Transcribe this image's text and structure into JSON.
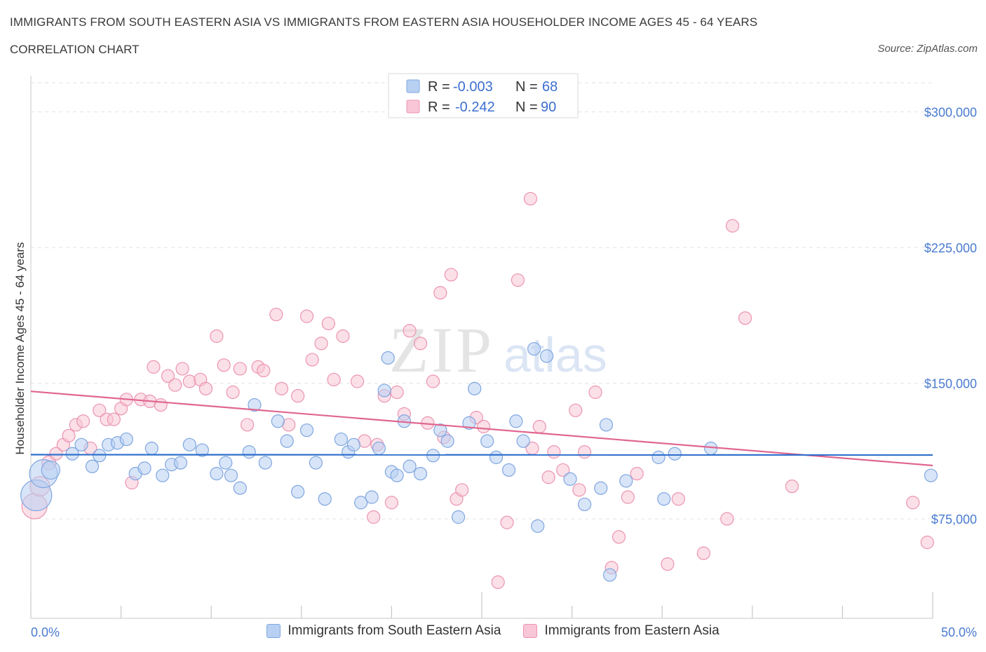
{
  "title": "IMMIGRANTS FROM SOUTH EASTERN ASIA VS IMMIGRANTS FROM EASTERN ASIA HOUSEHOLDER INCOME AGES 45 - 64 YEARS",
  "subtitle": "CORRELATION CHART",
  "source": "Source: ZipAtlas.com",
  "watermark": {
    "zip": "ZIP",
    "atlas": "atlas"
  },
  "colors": {
    "blue_fill": "#b8d0f2",
    "blue_stroke": "#7fa6e0",
    "blue_line": "#2f6fcc",
    "pink_fill": "#f8c6d6",
    "pink_stroke": "#ec94b1",
    "pink_line": "#e06690",
    "axis_label": "#4a7bd0",
    "grid": "#e2e2e2"
  },
  "legend_box": {
    "rows": [
      {
        "r_label": "R =",
        "r_value": "-0.003",
        "n_label": "N =",
        "n_value": "68",
        "series": "blue"
      },
      {
        "r_label": "R =",
        "r_value": "-0.242",
        "n_label": "N =",
        "n_value": "90",
        "series": "pink"
      }
    ]
  },
  "bottom_legend": [
    {
      "label": "Immigrants from South Eastern Asia",
      "series": "blue"
    },
    {
      "label": "Immigrants from Eastern Asia",
      "series": "pink"
    }
  ],
  "chart_data": {
    "type": "scatter",
    "title": "IMMIGRANTS FROM SOUTH EASTERN ASIA VS IMMIGRANTS FROM EASTERN ASIA HOUSEHOLDER INCOME AGES 45 - 64 YEARS",
    "xlabel": "",
    "ylabel": "Householder Income Ages 45 - 64 years",
    "xlim": [
      0,
      50
    ],
    "ylim": [
      20000,
      320000
    ],
    "x_tick_labels": [
      "0.0%",
      "50.0%"
    ],
    "y_ticks": [
      75000,
      150000,
      225000,
      300000
    ],
    "y_tick_labels": [
      "$75,000",
      "$150,000",
      "$225,000",
      "$300,000"
    ],
    "grid": true,
    "series": [
      {
        "name": "Immigrants from South Eastern Asia",
        "color": "blue",
        "trend": {
          "x": [
            0,
            50
          ],
          "y": [
            110500,
            110300
          ]
        },
        "points": [
          [
            0.3,
            88000,
            22
          ],
          [
            0.7,
            100000,
            20
          ],
          [
            1.1,
            102000,
            13
          ],
          [
            2.3,
            111000,
            9
          ],
          [
            2.8,
            116000,
            9
          ],
          [
            3.4,
            104000,
            9
          ],
          [
            3.8,
            110000,
            9
          ],
          [
            4.3,
            116000,
            9
          ],
          [
            4.8,
            117000,
            9
          ],
          [
            5.3,
            119000,
            9
          ],
          [
            5.8,
            100000,
            9
          ],
          [
            6.3,
            103000,
            9
          ],
          [
            6.7,
            114000,
            9
          ],
          [
            7.3,
            99000,
            9
          ],
          [
            7.8,
            105000,
            9
          ],
          [
            8.3,
            106000,
            9
          ],
          [
            8.8,
            116000,
            9
          ],
          [
            9.5,
            113000,
            9
          ],
          [
            10.3,
            100000,
            9
          ],
          [
            10.8,
            106000,
            9
          ],
          [
            11.1,
            99000,
            9
          ],
          [
            11.6,
            92000,
            9
          ],
          [
            12.1,
            112000,
            9
          ],
          [
            12.4,
            138000,
            9
          ],
          [
            13.0,
            106000,
            9
          ],
          [
            13.7,
            129000,
            9
          ],
          [
            14.2,
            118000,
            9
          ],
          [
            14.8,
            90000,
            9
          ],
          [
            15.3,
            124000,
            9
          ],
          [
            15.8,
            106000,
            9
          ],
          [
            16.3,
            86000,
            9
          ],
          [
            17.2,
            119000,
            9
          ],
          [
            17.6,
            112000,
            9
          ],
          [
            17.9,
            116000,
            9
          ],
          [
            18.3,
            84000,
            9
          ],
          [
            18.9,
            87000,
            9
          ],
          [
            19.3,
            114000,
            9
          ],
          [
            19.6,
            146000,
            9
          ],
          [
            19.8,
            164000,
            9
          ],
          [
            20.0,
            101000,
            9
          ],
          [
            20.3,
            99000,
            9
          ],
          [
            20.7,
            129000,
            9
          ],
          [
            21.0,
            104000,
            9
          ],
          [
            21.6,
            100000,
            9
          ],
          [
            22.3,
            110000,
            9
          ],
          [
            22.7,
            124000,
            9
          ],
          [
            23.1,
            118000,
            9
          ],
          [
            23.7,
            76000,
            9
          ],
          [
            24.3,
            128000,
            9
          ],
          [
            24.6,
            147000,
            9
          ],
          [
            25.3,
            118000,
            9
          ],
          [
            25.8,
            109000,
            9
          ],
          [
            26.5,
            102000,
            9
          ],
          [
            26.9,
            129000,
            9
          ],
          [
            27.3,
            118000,
            9
          ],
          [
            27.9,
            169000,
            9
          ],
          [
            28.1,
            71000,
            9
          ],
          [
            28.6,
            165000,
            9
          ],
          [
            29.9,
            97000,
            9
          ],
          [
            30.7,
            83000,
            9
          ],
          [
            31.6,
            92000,
            9
          ],
          [
            31.9,
            127000,
            9
          ],
          [
            32.1,
            44000,
            9
          ],
          [
            33.0,
            96000,
            9
          ],
          [
            34.8,
            109000,
            9
          ],
          [
            35.1,
            86000,
            9
          ],
          [
            35.7,
            111000,
            9
          ],
          [
            37.7,
            114000,
            9
          ],
          [
            49.9,
            99000,
            9
          ]
        ]
      },
      {
        "name": "Immigrants from Eastern Asia",
        "color": "pink",
        "trend": {
          "x": [
            0,
            50
          ],
          "y": [
            145500,
            104500
          ]
        },
        "points": [
          [
            0.2,
            82000,
            18
          ],
          [
            0.5,
            93000,
            14
          ],
          [
            1.0,
            106000,
            10
          ],
          [
            1.4,
            111000,
            9
          ],
          [
            1.8,
            116000,
            9
          ],
          [
            2.1,
            121000,
            9
          ],
          [
            2.5,
            127000,
            9
          ],
          [
            2.9,
            129000,
            9
          ],
          [
            3.3,
            114000,
            9
          ],
          [
            3.8,
            135000,
            9
          ],
          [
            4.2,
            130000,
            9
          ],
          [
            4.6,
            130000,
            9
          ],
          [
            5.0,
            136000,
            9
          ],
          [
            5.3,
            141000,
            9
          ],
          [
            5.6,
            95000,
            9
          ],
          [
            6.1,
            141000,
            9
          ],
          [
            6.6,
            140000,
            9
          ],
          [
            6.8,
            159000,
            9
          ],
          [
            7.2,
            138000,
            9
          ],
          [
            7.6,
            154000,
            9
          ],
          [
            8.0,
            149000,
            9
          ],
          [
            8.4,
            158000,
            9
          ],
          [
            8.8,
            151000,
            9
          ],
          [
            9.4,
            152000,
            9
          ],
          [
            9.7,
            147000,
            9
          ],
          [
            10.3,
            176000,
            9
          ],
          [
            10.7,
            160000,
            9
          ],
          [
            11.2,
            145000,
            9
          ],
          [
            11.6,
            158000,
            9
          ],
          [
            12.0,
            127000,
            9
          ],
          [
            12.6,
            159000,
            9
          ],
          [
            12.9,
            157000,
            9
          ],
          [
            13.6,
            188000,
            9
          ],
          [
            13.9,
            147000,
            9
          ],
          [
            14.3,
            127000,
            9
          ],
          [
            14.8,
            143000,
            9
          ],
          [
            15.3,
            187000,
            9
          ],
          [
            15.6,
            163000,
            9
          ],
          [
            16.1,
            172000,
            9
          ],
          [
            16.5,
            183000,
            9
          ],
          [
            16.8,
            152000,
            9
          ],
          [
            17.3,
            176000,
            9
          ],
          [
            18.1,
            151000,
            9
          ],
          [
            18.5,
            118000,
            9
          ],
          [
            19.0,
            76000,
            9
          ],
          [
            19.2,
            116000,
            9
          ],
          [
            19.6,
            143000,
            9
          ],
          [
            20.0,
            84000,
            9
          ],
          [
            20.3,
            145000,
            9
          ],
          [
            20.7,
            133000,
            9
          ],
          [
            21.0,
            179000,
            9
          ],
          [
            21.6,
            172000,
            9
          ],
          [
            22.0,
            128000,
            9
          ],
          [
            22.3,
            151000,
            9
          ],
          [
            22.7,
            200000,
            9
          ],
          [
            22.9,
            120000,
            9
          ],
          [
            23.3,
            210000,
            9
          ],
          [
            23.6,
            86000,
            9
          ],
          [
            23.9,
            91000,
            9
          ],
          [
            24.7,
            131000,
            9
          ],
          [
            25.1,
            126000,
            9
          ],
          [
            25.9,
            40000,
            9
          ],
          [
            26.4,
            73000,
            9
          ],
          [
            27.0,
            207000,
            9
          ],
          [
            27.7,
            252000,
            9
          ],
          [
            27.8,
            114000,
            9
          ],
          [
            28.2,
            126000,
            9
          ],
          [
            28.7,
            98000,
            9
          ],
          [
            29.0,
            112000,
            9
          ],
          [
            29.5,
            102000,
            9
          ],
          [
            30.2,
            135000,
            9
          ],
          [
            30.4,
            91000,
            9
          ],
          [
            30.7,
            112000,
            9
          ],
          [
            31.3,
            145000,
            9
          ],
          [
            32.2,
            48000,
            9
          ],
          [
            32.6,
            65000,
            9
          ],
          [
            33.1,
            87000,
            9
          ],
          [
            33.6,
            100000,
            9
          ],
          [
            35.3,
            50000,
            9
          ],
          [
            35.9,
            86000,
            9
          ],
          [
            37.3,
            56000,
            9
          ],
          [
            38.6,
            75000,
            9
          ],
          [
            38.9,
            237000,
            9
          ],
          [
            39.6,
            186000,
            9
          ],
          [
            42.2,
            93000,
            9
          ],
          [
            48.9,
            84000,
            9
          ],
          [
            49.7,
            62000,
            9
          ]
        ]
      }
    ]
  }
}
